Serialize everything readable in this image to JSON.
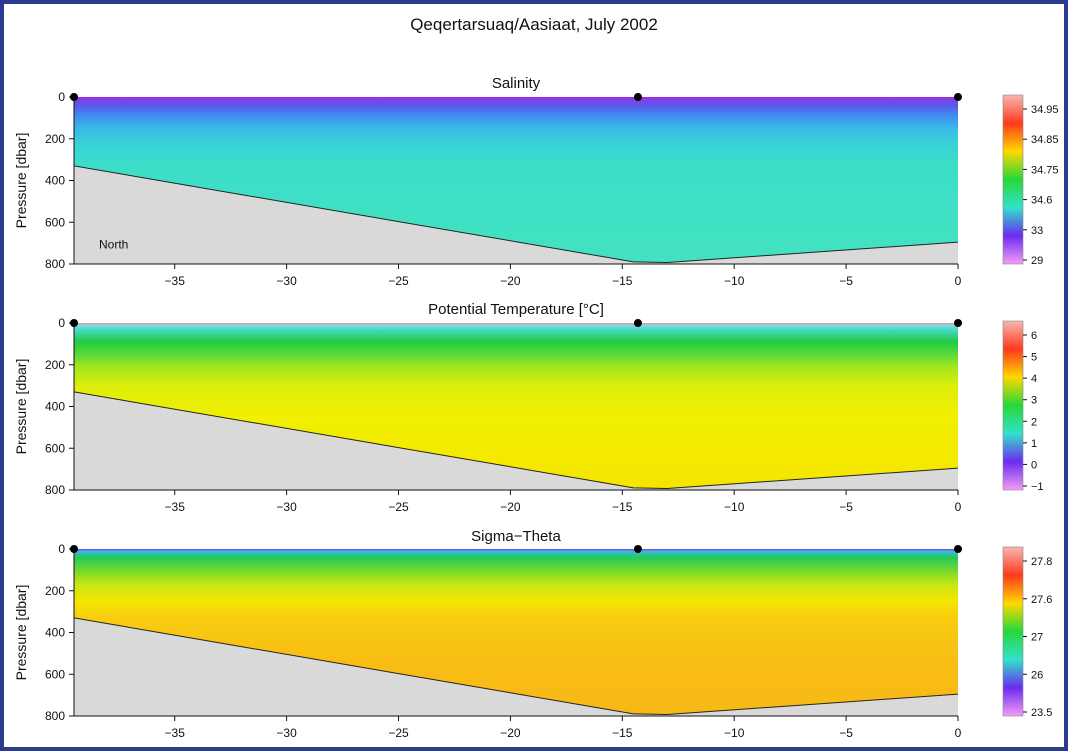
{
  "figure_title": "Qeqertarsuaq/Aasiaat, July 2002",
  "colors": {
    "frame": "#2b3a8f",
    "seafloor": "#d9d9d9",
    "station": "#000000"
  },
  "chart_data": [
    {
      "type": "heatmap",
      "title": "Salinity",
      "xlabel": "",
      "ylabel": "Pressure [dbar]",
      "x_ticks": [
        -35,
        -30,
        -25,
        -20,
        -15,
        -10,
        -5,
        0
      ],
      "y_ticks": [
        0,
        200,
        400,
        600,
        800
      ],
      "xlim": [
        -39.5,
        0
      ],
      "ylim": [
        800,
        0
      ],
      "stations_x": [
        -39.5,
        -14.3,
        0
      ],
      "bottom_profile": [
        [
          -39.5,
          330
        ],
        [
          -14.5,
          790
        ],
        [
          -13,
          793
        ],
        [
          0,
          695
        ]
      ],
      "annotation": "North",
      "colorbar_labels": [
        "34.95",
        "34.85",
        "34.75",
        "34.6",
        "33",
        "29"
      ],
      "colorbar_colors": [
        "#f6b8b0",
        "#ff3a1e",
        "#ffd800",
        "#26d83a",
        "#33e0cc",
        "#6b2cf0",
        "#f39cf5"
      ],
      "field": [
        {
          "z": 0,
          "color": "#9b2bdb"
        },
        {
          "z": 10,
          "color": "#8a3ce8"
        },
        {
          "z": 40,
          "color": "#5a58ea"
        },
        {
          "z": 90,
          "color": "#3f8ef0"
        },
        {
          "z": 150,
          "color": "#3ab9e6"
        },
        {
          "z": 230,
          "color": "#38d3d6"
        },
        {
          "z": 330,
          "color": "#3cdec8"
        },
        {
          "z": 800,
          "color": "#43e2c0"
        }
      ]
    },
    {
      "type": "heatmap",
      "title": "Potential Temperature [°C]",
      "xlabel": "",
      "ylabel": "Pressure [dbar]",
      "x_ticks": [
        -35,
        -30,
        -25,
        -20,
        -15,
        -10,
        -5,
        0
      ],
      "y_ticks": [
        0,
        200,
        400,
        600,
        800
      ],
      "xlim": [
        -39.5,
        0
      ],
      "ylim": [
        800,
        0
      ],
      "stations_x": [
        -39.5,
        -14.3,
        0
      ],
      "bottom_profile": [
        [
          -39.5,
          330
        ],
        [
          -14.5,
          790
        ],
        [
          -13,
          793
        ],
        [
          0,
          695
        ]
      ],
      "colorbar_labels": [
        "6",
        "5",
        "4",
        "3",
        "2",
        "1",
        "0",
        "−1"
      ],
      "colorbar_colors": [
        "#f6b8b0",
        "#ff3a1e",
        "#ffd800",
        "#26d83a",
        "#33e0cc",
        "#6b2cf0",
        "#f39cf5"
      ],
      "field": [
        {
          "z": 0,
          "color": "#ff8a70"
        },
        {
          "z": 10,
          "color": "#7bdcf0"
        },
        {
          "z": 40,
          "color": "#3fd7b2"
        },
        {
          "z": 90,
          "color": "#22cc44"
        },
        {
          "z": 150,
          "color": "#59d93a"
        },
        {
          "z": 210,
          "color": "#a3e61f"
        },
        {
          "z": 300,
          "color": "#dcee0a"
        },
        {
          "z": 450,
          "color": "#f2ef00"
        },
        {
          "z": 800,
          "color": "#f5e500"
        }
      ]
    },
    {
      "type": "heatmap",
      "title": "Sigma−Theta",
      "xlabel": "",
      "ylabel": "Pressure [dbar]",
      "x_ticks": [
        -35,
        -30,
        -25,
        -20,
        -15,
        -10,
        -5,
        0
      ],
      "y_ticks": [
        0,
        200,
        400,
        600,
        800
      ],
      "xlim": [
        -39.5,
        0
      ],
      "ylim": [
        800,
        0
      ],
      "stations_x": [
        -39.5,
        -14.3,
        0
      ],
      "bottom_profile": [
        [
          -39.5,
          330
        ],
        [
          -14.5,
          790
        ],
        [
          -13,
          793
        ],
        [
          0,
          695
        ]
      ],
      "colorbar_labels": [
        "27.8",
        "27.6",
        "27",
        "26",
        "23.5"
      ],
      "colorbar_colors": [
        "#f6b8b0",
        "#ff3a1e",
        "#ffd800",
        "#26d83a",
        "#33e0cc",
        "#6b2cf0",
        "#f39cf5"
      ],
      "field": [
        {
          "z": 0,
          "color": "#7a36e6"
        },
        {
          "z": 10,
          "color": "#3fb8e8"
        },
        {
          "z": 40,
          "color": "#22c95a"
        },
        {
          "z": 100,
          "color": "#6fd82e"
        },
        {
          "z": 170,
          "color": "#c8e713"
        },
        {
          "z": 250,
          "color": "#f4e600"
        },
        {
          "z": 330,
          "color": "#f8cd10"
        },
        {
          "z": 500,
          "color": "#f8bf14"
        },
        {
          "z": 800,
          "color": "#f7b816"
        }
      ]
    }
  ]
}
